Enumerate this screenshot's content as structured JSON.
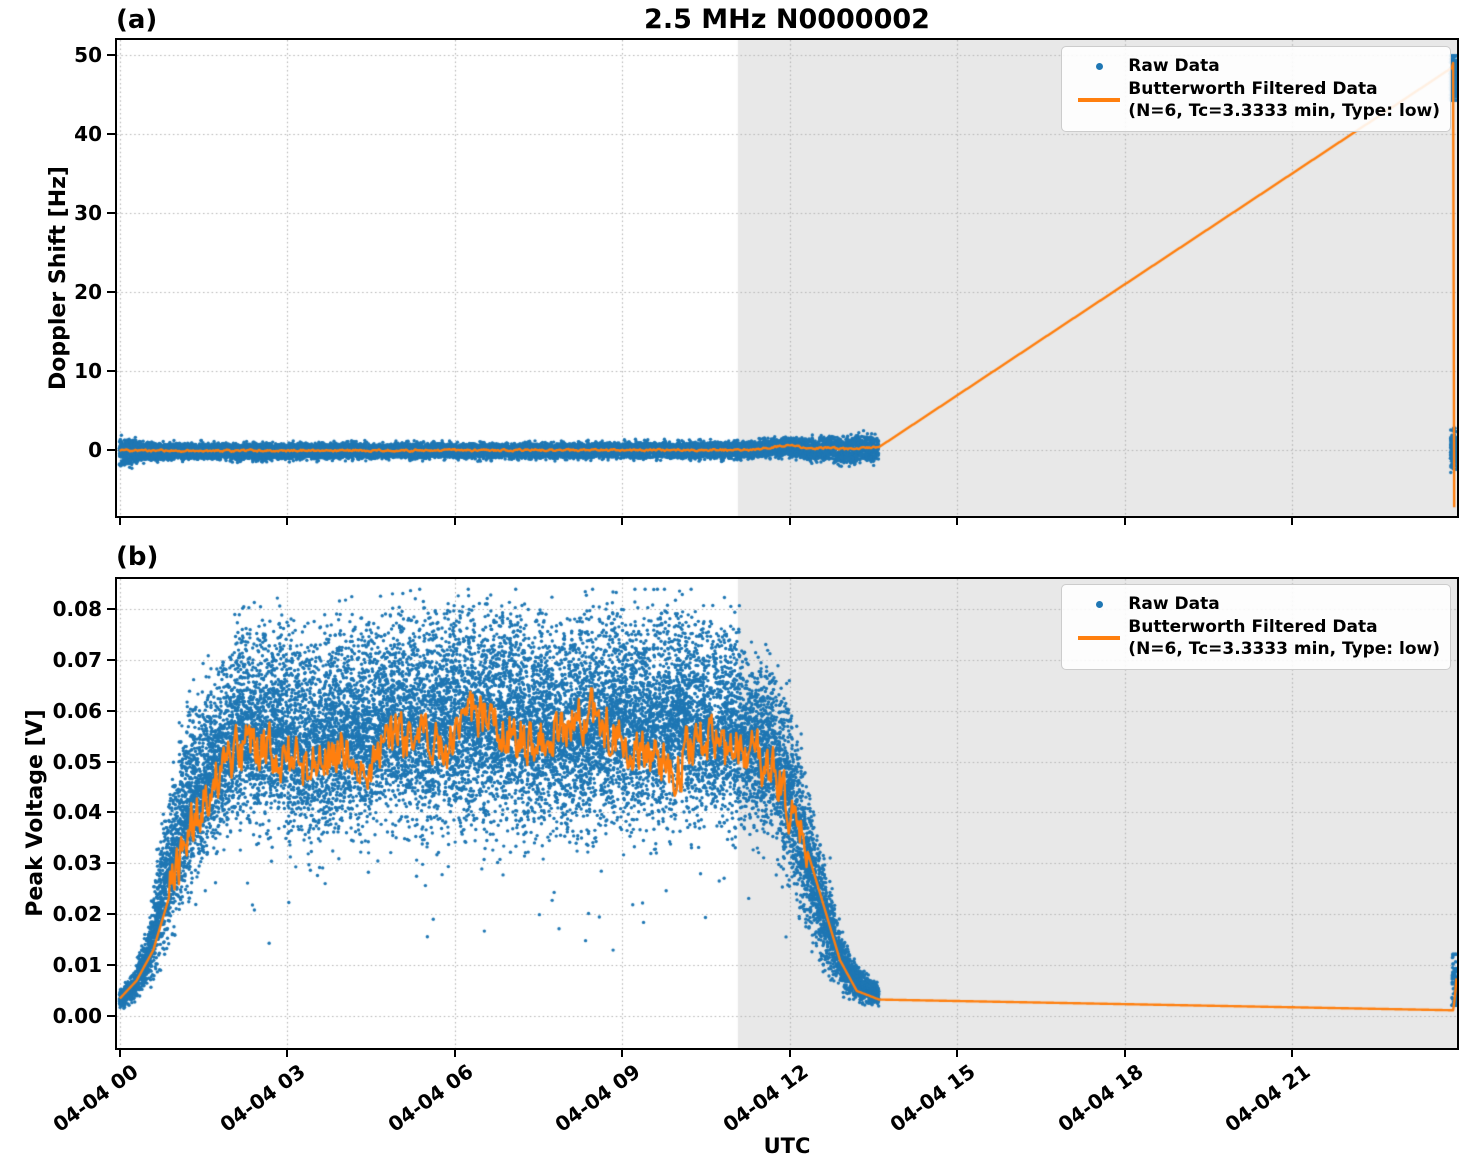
{
  "chart_data": {
    "type": "scatter+line",
    "title": "2.5 MHz N0000002",
    "xlabel": "UTC",
    "xlim": [
      -0.05,
      23.95
    ],
    "xticks": [
      {
        "t": 0,
        "label": "04-04 00"
      },
      {
        "t": 3,
        "label": "04-04 03"
      },
      {
        "t": 6,
        "label": "04-04 06"
      },
      {
        "t": 9,
        "label": "04-04 09"
      },
      {
        "t": 12,
        "label": "04-04 12"
      },
      {
        "t": 15,
        "label": "04-04 15"
      },
      {
        "t": 18,
        "label": "04-04 18"
      },
      {
        "t": 21,
        "label": "04-04 21"
      }
    ],
    "shaded_region": {
      "t0": 11.07,
      "t1": 23.95
    },
    "grid": "dotted",
    "legend": {
      "location": "upper right",
      "raw": "Raw Data",
      "filtered_line1": "Butterworth Filtered Data",
      "filtered_line2": "(N=6, Tc=3.3333 min, Type: low)"
    },
    "panels": [
      {
        "tag": "(a)",
        "ylabel": "Doppler Shift [Hz]",
        "ylim": [
          -8.3,
          51.9
        ],
        "yticks": [
          {
            "v": 0,
            "label": "0"
          },
          {
            "v": 10,
            "label": "10"
          },
          {
            "v": 20,
            "label": "20"
          },
          {
            "v": 30,
            "label": "30"
          },
          {
            "v": 40,
            "label": "40"
          },
          {
            "v": 50,
            "label": "50"
          }
        ],
        "seed": 42,
        "raw": {
          "band": {
            "mode": "centered",
            "t0": 0,
            "t1": 13.6,
            "step": 0.0176,
            "per": 14,
            "center": [
              [
                0,
                -0.15
              ],
              [
                3,
                -0.1
              ],
              [
                7,
                -0.05
              ],
              [
                11.3,
                0.05
              ],
              [
                12.0,
                0.55
              ],
              [
                12.35,
                0.1
              ],
              [
                12.7,
                0.3
              ],
              [
                13.0,
                0.05
              ],
              [
                13.3,
                0.25
              ],
              [
                13.6,
                0.15
              ]
            ],
            "halfwidth": [
              [
                0,
                2.0
              ],
              [
                0.15,
                1.7
              ],
              [
                0.4,
                1.2
              ],
              [
                1,
                1.05
              ],
              [
                5,
                0.95
              ],
              [
                9,
                1.0
              ],
              [
                11.5,
                1.05
              ],
              [
                12.2,
                1.3
              ],
              [
                12.8,
                1.6
              ],
              [
                13.3,
                1.7
              ],
              [
                13.6,
                1.5
              ]
            ]
          },
          "clusters": [
            {
              "t0": 23.83,
              "t1": 23.95,
              "n": 260,
              "mean": 47.2,
              "sd": 1.5,
              "clip": [
                44.3,
                49.9
              ]
            },
            {
              "t0": 23.83,
              "t1": 23.95,
              "n": 190,
              "mean": 0.1,
              "sd": 1.2,
              "clip": [
                -2.8,
                2.8
              ]
            }
          ]
        },
        "line": {
          "step": 0.02,
          "noise": {
            "t0": 0,
            "t1": 13.55,
            "amp": 0.13
          },
          "keypoints": [
            [
              0,
              -0.05
            ],
            [
              11.3,
              0.05
            ],
            [
              12.0,
              0.65
            ],
            [
              12.35,
              0.2
            ],
            [
              12.7,
              0.35
            ],
            [
              13.0,
              0.15
            ],
            [
              13.3,
              0.3
            ],
            [
              13.6,
              0.42
            ],
            [
              23.86,
              48.4
            ],
            [
              23.88,
              49.0
            ],
            [
              23.9,
              -7.2
            ]
          ]
        }
      },
      {
        "tag": "(b)",
        "ylabel": "Peak Voltage [V]",
        "ylim": [
          -0.0062,
          0.0858
        ],
        "yticks": [
          {
            "v": 0.0,
            "label": "0.00"
          },
          {
            "v": 0.01,
            "label": "0.01"
          },
          {
            "v": 0.02,
            "label": "0.02"
          },
          {
            "v": 0.03,
            "label": "0.03"
          },
          {
            "v": 0.04,
            "label": "0.04"
          },
          {
            "v": 0.05,
            "label": "0.05"
          },
          {
            "v": 0.06,
            "label": "0.06"
          },
          {
            "v": 0.07,
            "label": "0.07"
          },
          {
            "v": 0.08,
            "label": "0.08"
          }
        ],
        "seed": 7,
        "raw": {
          "band": {
            "mode": "envelope",
            "t0": 0,
            "t1": 13.6,
            "step": 0.0176,
            "per": 22,
            "spike_prob": 0.3,
            "low_prob": 0.05,
            "envelope": [
              [
                0,
                0.0015,
                0.005
              ],
              [
                0.25,
                0.002,
                0.009
              ],
              [
                0.5,
                0.004,
                0.018
              ],
              [
                0.75,
                0.008,
                0.035
              ],
              [
                1.0,
                0.013,
                0.05
              ],
              [
                1.3,
                0.02,
                0.06
              ],
              [
                1.7,
                0.027,
                0.068
              ],
              [
                2.2,
                0.03,
                0.075
              ],
              [
                2.8,
                0.028,
                0.078
              ],
              [
                3.5,
                0.026,
                0.075
              ],
              [
                4.2,
                0.028,
                0.077
              ],
              [
                5.0,
                0.03,
                0.078
              ],
              [
                5.8,
                0.028,
                0.08
              ],
              [
                6.5,
                0.03,
                0.08
              ],
              [
                7.2,
                0.029,
                0.079
              ],
              [
                8.0,
                0.028,
                0.077
              ],
              [
                8.7,
                0.03,
                0.08
              ],
              [
                9.4,
                0.03,
                0.079
              ],
              [
                10.0,
                0.031,
                0.08
              ],
              [
                10.6,
                0.03,
                0.077
              ],
              [
                11.2,
                0.032,
                0.074
              ],
              [
                11.7,
                0.03,
                0.068
              ],
              [
                12.0,
                0.022,
                0.06
              ],
              [
                12.3,
                0.012,
                0.047
              ],
              [
                12.6,
                0.006,
                0.032
              ],
              [
                12.9,
                0.003,
                0.018
              ],
              [
                13.2,
                0.002,
                0.01
              ],
              [
                13.6,
                0.0015,
                0.0065
              ]
            ]
          },
          "clusters": [
            {
              "t0": 23.86,
              "t1": 23.95,
              "n": 90,
              "mean": 0.006,
              "sd": 0.0035,
              "clip": [
                0.0022,
                0.0122
              ]
            }
          ]
        },
        "line": {
          "step": 0.02,
          "noise": {
            "t0": 0.9,
            "t1": 12.3,
            "amp": 0.005
          },
          "keypoints": [
            [
              0,
              0.0035
            ],
            [
              0.3,
              0.007
            ],
            [
              0.6,
              0.013
            ],
            [
              0.9,
              0.024
            ],
            [
              1.2,
              0.035
            ],
            [
              1.5,
              0.043
            ],
            [
              1.9,
              0.049
            ],
            [
              2.4,
              0.054
            ],
            [
              2.9,
              0.051
            ],
            [
              3.4,
              0.049
            ],
            [
              3.9,
              0.053
            ],
            [
              4.4,
              0.05
            ],
            [
              4.9,
              0.054
            ],
            [
              5.4,
              0.057
            ],
            [
              5.9,
              0.053
            ],
            [
              6.4,
              0.06
            ],
            [
              6.9,
              0.057
            ],
            [
              7.4,
              0.053
            ],
            [
              7.9,
              0.056
            ],
            [
              8.4,
              0.059
            ],
            [
              8.9,
              0.054
            ],
            [
              9.4,
              0.051
            ],
            [
              9.9,
              0.048
            ],
            [
              10.4,
              0.055
            ],
            [
              10.9,
              0.051
            ],
            [
              11.3,
              0.053
            ],
            [
              11.7,
              0.048
            ],
            [
              12.0,
              0.042
            ],
            [
              12.3,
              0.033
            ],
            [
              12.6,
              0.022
            ],
            [
              12.9,
              0.011
            ],
            [
              13.2,
              0.005
            ],
            [
              13.6,
              0.0033
            ],
            [
              23.88,
              0.0012
            ],
            [
              23.91,
              0.0034
            ],
            [
              23.95,
              0.0088
            ]
          ]
        }
      }
    ]
  },
  "colors": {
    "raw": "#1f77b4",
    "filtered": "#ff7f0e",
    "shade": "#e8e8e8",
    "grid": "#b3b3b3",
    "spine": "#000000",
    "legend_border": "#cccccc"
  }
}
